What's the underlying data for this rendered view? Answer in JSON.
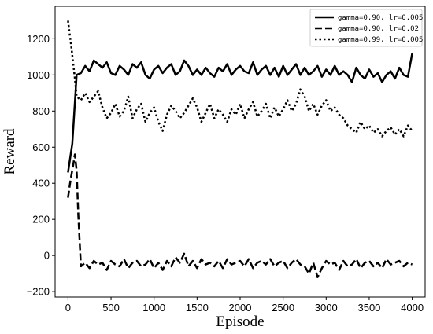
{
  "chart_data": {
    "type": "line",
    "xlabel": "Episode",
    "ylabel": "Reward",
    "xlim": [
      -150,
      4150
    ],
    "ylim": [
      -230,
      1380
    ],
    "xticks": [
      0,
      500,
      1000,
      1500,
      2000,
      2500,
      3000,
      3500,
      4000
    ],
    "yticks": [
      -200,
      0,
      200,
      400,
      600,
      800,
      1000,
      1200
    ],
    "ytick_labels": [
      "−200",
      "0",
      "200",
      "400",
      "600",
      "800",
      "1000",
      "1200"
    ],
    "grid": false,
    "legend_position": "top-right",
    "series": [
      {
        "name": "gamma=0.90, lr=0.005",
        "style": "solid",
        "x": [
          0,
          50,
          100,
          150,
          200,
          250,
          300,
          350,
          400,
          450,
          500,
          550,
          600,
          650,
          700,
          750,
          800,
          850,
          900,
          950,
          1000,
          1050,
          1100,
          1150,
          1200,
          1250,
          1300,
          1350,
          1400,
          1450,
          1500,
          1550,
          1600,
          1650,
          1700,
          1750,
          1800,
          1850,
          1900,
          1950,
          2000,
          2050,
          2100,
          2150,
          2200,
          2250,
          2300,
          2350,
          2400,
          2450,
          2500,
          2550,
          2600,
          2650,
          2700,
          2750,
          2800,
          2850,
          2900,
          2950,
          3000,
          3050,
          3100,
          3150,
          3200,
          3250,
          3300,
          3350,
          3400,
          3450,
          3500,
          3550,
          3600,
          3650,
          3700,
          3750,
          3800,
          3850,
          3900,
          3950,
          4000
        ],
        "y": [
          460,
          620,
          1000,
          1010,
          1050,
          1020,
          1080,
          1060,
          1040,
          1070,
          1010,
          1000,
          1050,
          1030,
          1000,
          1060,
          1040,
          1070,
          1000,
          980,
          1030,
          1050,
          1010,
          1040,
          1060,
          1000,
          1020,
          1080,
          1050,
          1000,
          1030,
          1000,
          1040,
          1010,
          990,
          1040,
          1020,
          1060,
          1000,
          1030,
          1050,
          1020,
          1010,
          1070,
          1000,
          1030,
          1050,
          1000,
          1040,
          990,
          1050,
          1000,
          1030,
          1060,
          1000,
          1040,
          1000,
          1020,
          1050,
          990,
          1030,
          1000,
          1050,
          1000,
          1020,
          1000,
          960,
          1040,
          1000,
          980,
          1030,
          990,
          1010,
          960,
          1000,
          1020,
          980,
          1040,
          1000,
          990,
          1120
        ]
      },
      {
        "name": "gamma=0.90, lr=0.02",
        "style": "dashed",
        "x": [
          0,
          30,
          60,
          80,
          100,
          120,
          150,
          200,
          250,
          300,
          350,
          400,
          450,
          500,
          550,
          600,
          650,
          700,
          750,
          800,
          850,
          900,
          950,
          1000,
          1050,
          1100,
          1150,
          1200,
          1250,
          1300,
          1350,
          1400,
          1450,
          1500,
          1550,
          1600,
          1650,
          1700,
          1750,
          1800,
          1850,
          1900,
          1950,
          2000,
          2050,
          2100,
          2150,
          2200,
          2250,
          2300,
          2350,
          2400,
          2450,
          2500,
          2550,
          2600,
          2650,
          2700,
          2750,
          2800,
          2850,
          2900,
          2950,
          3000,
          3050,
          3100,
          3150,
          3200,
          3250,
          3300,
          3350,
          3400,
          3450,
          3500,
          3550,
          3600,
          3650,
          3700,
          3750,
          3800,
          3850,
          3900,
          3950,
          4000
        ],
        "y": [
          320,
          420,
          500,
          560,
          470,
          220,
          -60,
          -40,
          -70,
          -30,
          -50,
          -40,
          -80,
          -30,
          -50,
          -60,
          -20,
          -70,
          -40,
          -30,
          -60,
          -50,
          -20,
          -70,
          -40,
          -80,
          -30,
          -60,
          -10,
          -40,
          10,
          -60,
          -30,
          -70,
          -20,
          -50,
          -40,
          -60,
          -30,
          -70,
          -20,
          -50,
          -40,
          -30,
          -60,
          -20,
          -70,
          -40,
          -30,
          -50,
          -20,
          -60,
          -40,
          -30,
          -70,
          -40,
          -20,
          -50,
          -60,
          -100,
          -40,
          -120,
          -70,
          -30,
          -50,
          -40,
          -80,
          -30,
          -60,
          -50,
          -20,
          -70,
          -40,
          -30,
          -60,
          -40,
          -70,
          -20,
          -50,
          -40,
          -30,
          -60,
          -40,
          -50
        ]
      },
      {
        "name": "gamma=0.99, lr=0.005",
        "style": "dotted",
        "x": [
          0,
          40,
          80,
          100,
          150,
          200,
          250,
          300,
          350,
          400,
          450,
          500,
          550,
          600,
          650,
          700,
          750,
          800,
          850,
          900,
          950,
          1000,
          1050,
          1100,
          1150,
          1200,
          1250,
          1300,
          1350,
          1400,
          1450,
          1500,
          1550,
          1600,
          1650,
          1700,
          1750,
          1800,
          1850,
          1900,
          1950,
          2000,
          2050,
          2100,
          2150,
          2200,
          2250,
          2300,
          2350,
          2400,
          2450,
          2500,
          2550,
          2600,
          2650,
          2700,
          2750,
          2800,
          2850,
          2900,
          2950,
          3000,
          3050,
          3100,
          3150,
          3200,
          3250,
          3300,
          3350,
          3400,
          3450,
          3500,
          3550,
          3600,
          3650,
          3700,
          3750,
          3800,
          3850,
          3900,
          3950,
          4000
        ],
        "y": [
          1300,
          1150,
          980,
          880,
          860,
          900,
          850,
          880,
          910,
          820,
          760,
          790,
          840,
          770,
          800,
          880,
          760,
          810,
          840,
          740,
          790,
          820,
          740,
          690,
          780,
          830,
          800,
          760,
          790,
          830,
          870,
          820,
          740,
          790,
          840,
          760,
          810,
          780,
          740,
          810,
          780,
          840,
          760,
          810,
          850,
          770,
          800,
          840,
          760,
          820,
          770,
          810,
          860,
          800,
          840,
          920,
          880,
          800,
          840,
          780,
          830,
          860,
          800,
          820,
          780,
          760,
          720,
          700,
          680,
          740,
          700,
          720,
          680,
          700,
          660,
          690,
          710,
          670,
          700,
          660,
          720,
          690
        ]
      }
    ]
  }
}
